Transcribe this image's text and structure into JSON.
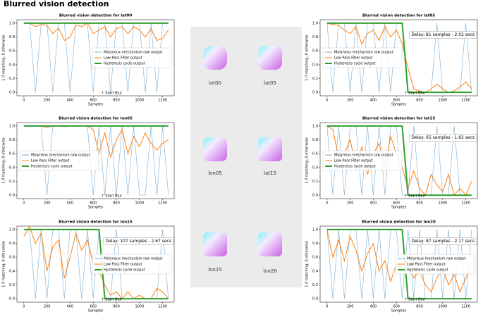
{
  "title": "Blurred vision detection",
  "gallery": {
    "labels": [
      "lat00",
      "lat05",
      "lon05",
      "lat15",
      "lon15",
      "lon20"
    ]
  },
  "chart_data": [
    {
      "type": "line",
      "title": "Blurred vision detection for lat00",
      "x_label": "Samples",
      "y_label": "1 if matching, 0 otherwise",
      "start_label": "↑ Start Blur",
      "legend": "center right",
      "xlim": [
        -60,
        1300
      ],
      "xticks": [
        0,
        200,
        400,
        600,
        800,
        1000,
        1200
      ],
      "ylim": [
        -0.05,
        1.05
      ],
      "yticks": [
        {
          "value": 0,
          "label": "0.0"
        },
        {
          "value": 0.2,
          "label": "0.2"
        },
        {
          "value": 0.4,
          "label": "0.4"
        },
        {
          "value": 0.6,
          "label": "0.6"
        },
        {
          "value": 0.8,
          "label": "0.8"
        },
        {
          "value": 1,
          "label": "1.0"
        }
      ],
      "x": [
        0,
        50,
        100,
        150,
        200,
        250,
        300,
        350,
        400,
        450,
        500,
        550,
        600,
        650,
        700,
        750,
        800,
        850,
        900,
        950,
        1000,
        1050,
        1100,
        1150,
        1200,
        1250
      ],
      "series": [
        {
          "name": "Molyneux mechanism raw output",
          "color": "#1f77b4",
          "values": [
            1,
            1,
            0,
            1,
            1,
            0,
            1,
            1,
            0,
            1,
            1,
            1,
            0,
            1,
            1,
            0,
            1,
            1,
            0,
            1,
            1,
            0,
            1,
            0,
            1,
            1
          ]
        },
        {
          "name": "Low Pass Filter output",
          "color": "#ff7f0e",
          "values": [
            1,
            1,
            0.95,
            0.98,
            0.97,
            0.85,
            0.93,
            0.75,
            0.8,
            0.97,
            0.95,
            1,
            0.85,
            0.9,
            0.95,
            0.8,
            0.92,
            0.95,
            0.85,
            0.95,
            0.9,
            0.8,
            0.92,
            0.75,
            0.78,
            0.9
          ]
        },
        {
          "name": "Hysteresis cycle output",
          "color": "#2ca02c",
          "values": [
            1,
            1,
            1,
            1,
            1,
            1,
            1,
            1,
            1,
            1,
            1,
            1,
            1,
            1,
            1,
            1,
            1,
            1,
            1,
            1,
            1,
            1,
            1,
            1,
            1,
            1
          ]
        }
      ]
    },
    {
      "type": "line",
      "title": "Blurred vision detection for lat05",
      "x_label": "Samples",
      "y_label": "1 if matching, 0 otherwise",
      "start_label": "↑ Start Blur",
      "annotation": "Delay: 81 samples - 2.02 secs",
      "legend": "center left",
      "xlim": [
        -60,
        1300
      ],
      "xticks": [
        0,
        200,
        400,
        600,
        800,
        1000,
        1200
      ],
      "ylim": [
        -0.05,
        1.05
      ],
      "yticks": [
        {
          "value": 0,
          "label": "0.0"
        },
        {
          "value": 0.2,
          "label": "0.2"
        },
        {
          "value": 0.4,
          "label": "0.4"
        },
        {
          "value": 0.6,
          "label": "0.6"
        },
        {
          "value": 0.8,
          "label": "0.8"
        },
        {
          "value": 1,
          "label": "1.0"
        }
      ],
      "x": [
        0,
        50,
        100,
        150,
        200,
        250,
        300,
        350,
        400,
        450,
        500,
        550,
        600,
        650,
        700,
        750,
        800,
        850,
        900,
        950,
        1000,
        1050,
        1100,
        1150,
        1200,
        1250
      ],
      "series": [
        {
          "name": "Molyneux mechanism raw output",
          "color": "#1f77b4",
          "values": [
            1,
            0,
            1,
            1,
            0,
            1,
            0,
            1,
            1,
            0,
            1,
            0,
            1,
            1,
            0,
            0,
            0,
            0,
            0,
            1,
            0,
            0,
            0,
            0,
            1,
            0
          ]
        },
        {
          "name": "Low Pass Filter output",
          "color": "#ff7f0e",
          "values": [
            1,
            0.98,
            0.97,
            0.9,
            0.85,
            0.95,
            0.7,
            0.85,
            0.9,
            0.75,
            0.95,
            0.8,
            0.9,
            0.7,
            0.35,
            0.05,
            0.02,
            0,
            0.05,
            0.12,
            0.05,
            0,
            0.02,
            0.08,
            0.15,
            0.05
          ]
        },
        {
          "name": "Hysteresis cycle output",
          "color": "#2ca02c",
          "values": [
            1,
            1,
            1,
            1,
            1,
            1,
            1,
            1,
            1,
            1,
            1,
            1,
            1,
            1,
            0,
            0,
            0,
            0,
            0,
            0,
            0,
            0,
            0,
            0,
            0,
            0
          ]
        }
      ]
    },
    {
      "type": "line",
      "title": "Blurred vision detection for lon05",
      "x_label": "Samples",
      "y_label": "1 if matching, 0 otherwise",
      "start_label": "↑ Start Blur",
      "legend": "center left",
      "xlim": [
        -60,
        1300
      ],
      "xticks": [
        0,
        200,
        400,
        600,
        800,
        1000,
        1200
      ],
      "ylim": [
        -0.05,
        1.05
      ],
      "yticks": [
        {
          "value": 0,
          "label": "0.0"
        },
        {
          "value": 0.2,
          "label": "0.2"
        },
        {
          "value": 0.4,
          "label": "0.4"
        },
        {
          "value": 0.6,
          "label": "0.6"
        },
        {
          "value": 0.8,
          "label": "0.8"
        },
        {
          "value": 1,
          "label": "1.0"
        }
      ],
      "x": [
        0,
        50,
        100,
        150,
        200,
        250,
        300,
        350,
        400,
        450,
        500,
        550,
        600,
        650,
        700,
        750,
        800,
        850,
        900,
        950,
        1000,
        1050,
        1100,
        1150,
        1200,
        1250
      ],
      "series": [
        {
          "name": "Molyneux mechanism raw output",
          "color": "#1f77b4",
          "values": [
            1,
            1,
            1,
            1,
            0,
            1,
            1,
            1,
            1,
            1,
            1,
            1,
            0,
            1,
            0,
            1,
            0,
            1,
            0,
            1,
            0,
            0,
            1,
            0,
            1,
            0
          ]
        },
        {
          "name": "Low Pass Filter output",
          "color": "#ff7f0e",
          "values": [
            1,
            1,
            1,
            1,
            0.98,
            1,
            1,
            0.99,
            1,
            1,
            1,
            1,
            0.95,
            0.6,
            0.9,
            0.55,
            0.8,
            0.95,
            0.6,
            0.85,
            0.7,
            0.9,
            0.75,
            0.65,
            0.75,
            0.8
          ]
        },
        {
          "name": "Hysteresis cycle output",
          "color": "#2ca02c",
          "values": [
            1,
            1,
            1,
            1,
            1,
            1,
            1,
            1,
            1,
            1,
            1,
            1,
            1,
            1,
            1,
            1,
            1,
            1,
            1,
            1,
            1,
            1,
            1,
            1,
            1,
            1
          ]
        }
      ]
    },
    {
      "type": "line",
      "title": "Blurred vision detection for lat15",
      "x_label": "Samples",
      "y_label": "1 if matching, 0 otherwise",
      "start_label": "↑ Start Blur",
      "annotation": "Delay: 65 samples - 1.62 secs",
      "legend": "center left",
      "xlim": [
        -60,
        1300
      ],
      "xticks": [
        0,
        200,
        400,
        600,
        800,
        1000,
        1200
      ],
      "ylim": [
        -0.05,
        1.05
      ],
      "yticks": [
        {
          "value": 0,
          "label": "0.0"
        },
        {
          "value": 0.2,
          "label": "0.2"
        },
        {
          "value": 0.4,
          "label": "0.4"
        },
        {
          "value": 0.6,
          "label": "0.6"
        },
        {
          "value": 0.8,
          "label": "0.8"
        },
        {
          "value": 1,
          "label": "1.0"
        }
      ],
      "x": [
        0,
        50,
        100,
        150,
        200,
        250,
        300,
        350,
        400,
        450,
        500,
        550,
        600,
        650,
        700,
        750,
        800,
        850,
        900,
        950,
        1000,
        1050,
        1100,
        1150,
        1200,
        1250
      ],
      "series": [
        {
          "name": "Molyneux mechanism raw output",
          "color": "#1f77b4",
          "values": [
            1,
            0,
            1,
            0,
            1,
            1,
            0,
            1,
            0,
            1,
            0,
            1,
            1,
            0,
            0,
            1,
            0,
            0,
            0,
            1,
            0,
            0,
            1,
            0,
            0,
            0
          ]
        },
        {
          "name": "Low Pass Filter output",
          "color": "#ff7f0e",
          "values": [
            1,
            0.95,
            0.55,
            0.6,
            0.8,
            0.4,
            0.7,
            0.3,
            0.6,
            0.75,
            0.4,
            0.85,
            0.6,
            0.4,
            0.1,
            0.35,
            0.1,
            0,
            0.3,
            0.15,
            0.05,
            0.3,
            0,
            0.1,
            0,
            0.2
          ]
        },
        {
          "name": "Hysteresis cycle output",
          "color": "#2ca02c",
          "values": [
            1,
            1,
            1,
            1,
            1,
            1,
            1,
            1,
            1,
            1,
            1,
            1,
            1,
            1,
            0,
            0,
            0,
            0,
            0,
            0,
            0,
            0,
            0,
            0,
            0,
            0
          ]
        }
      ]
    },
    {
      "type": "line",
      "title": "Blurred vision detection for lon15",
      "x_label": "Samples",
      "y_label": "1 if matching, 0 otherwise",
      "start_label": "↑ Start Blur",
      "annotation": "Delay: 107 samples - 2.67 secs",
      "legend": "center right",
      "xlim": [
        -60,
        1300
      ],
      "xticks": [
        0,
        200,
        400,
        600,
        800,
        1000,
        1200
      ],
      "ylim": [
        -0.05,
        1.05
      ],
      "yticks": [
        {
          "value": 0,
          "label": "0.0"
        },
        {
          "value": 0.2,
          "label": "0.2"
        },
        {
          "value": 0.4,
          "label": "0.4"
        },
        {
          "value": 0.6,
          "label": "0.6"
        },
        {
          "value": 0.8,
          "label": "0.8"
        },
        {
          "value": 1,
          "label": "1.0"
        }
      ],
      "x": [
        0,
        50,
        100,
        150,
        200,
        250,
        300,
        350,
        400,
        450,
        500,
        550,
        600,
        650,
        700,
        750,
        800,
        850,
        900,
        950,
        1000,
        1050,
        1100,
        1150,
        1200,
        1250
      ],
      "series": [
        {
          "name": "Molyneux mechanism raw output",
          "color": "#1f77b4",
          "values": [
            1,
            1,
            0,
            1,
            0,
            1,
            1,
            0,
            1,
            1,
            0,
            1,
            0,
            1,
            0,
            0,
            1,
            0,
            0,
            0,
            0,
            0,
            0,
            0,
            1,
            0
          ]
        },
        {
          "name": "Low Pass Filter output",
          "color": "#ff7f0e",
          "values": [
            0.9,
            1.04,
            0.8,
            0.95,
            0.4,
            0.75,
            0.85,
            0.3,
            0.6,
            0.95,
            0.7,
            0.85,
            0.5,
            0.4,
            0.2,
            0.05,
            0.1,
            0,
            0.1,
            0,
            0.05,
            0,
            0,
            0.15,
            0.1,
            0
          ]
        },
        {
          "name": "Hysteresis cycle output",
          "color": "#2ca02c",
          "values": [
            1,
            1,
            1,
            1,
            1,
            1,
            1,
            1,
            1,
            1,
            1,
            1,
            1,
            1,
            0,
            0,
            0,
            0,
            0,
            0,
            0,
            0,
            0,
            0,
            0,
            0
          ]
        }
      ]
    },
    {
      "type": "line",
      "title": "Blurred vision detection for lon20",
      "x_label": "Samples",
      "y_label": "1 if matching, 0 otherwise",
      "start_label": "↑ Start Blur",
      "annotation": "Delay: 87 samples - 2.17 secs",
      "legend": "center right",
      "xlim": [
        -60,
        1300
      ],
      "xticks": [
        0,
        200,
        400,
        600,
        800,
        1000,
        1200
      ],
      "ylim": [
        -0.05,
        1.05
      ],
      "yticks": [
        {
          "value": 0,
          "label": "0.0"
        },
        {
          "value": 0.2,
          "label": "0.2"
        },
        {
          "value": 0.4,
          "label": "0.4"
        },
        {
          "value": 0.6,
          "label": "0.6"
        },
        {
          "value": 0.8,
          "label": "0.8"
        },
        {
          "value": 1,
          "label": "1.0"
        }
      ],
      "x": [
        0,
        50,
        100,
        150,
        200,
        250,
        300,
        350,
        400,
        450,
        500,
        550,
        600,
        650,
        700,
        750,
        800,
        850,
        900,
        950,
        1000,
        1050,
        1100,
        1150,
        1200,
        1250
      ],
      "series": [
        {
          "name": "Molyneux mechanism raw output",
          "color": "#1f77b4",
          "values": [
            1,
            0,
            1,
            0,
            1,
            1,
            0,
            1,
            0,
            1,
            0,
            1,
            1,
            0,
            1,
            0,
            1,
            0,
            0,
            1,
            0,
            1,
            0,
            1,
            0,
            1
          ]
        },
        {
          "name": "Low Pass Filter output",
          "color": "#ff7f0e",
          "values": [
            1,
            0.6,
            0.85,
            0.55,
            0.9,
            0.7,
            0.4,
            0.65,
            0.8,
            0.4,
            0.55,
            0.25,
            0.5,
            0.45,
            0.55,
            0.3,
            0.4,
            0.2,
            0.1,
            0.3,
            0.45,
            0.2,
            0.35,
            0.1,
            0.3,
            0.45
          ]
        },
        {
          "name": "Hysteresis cycle output",
          "color": "#2ca02c",
          "values": [
            1,
            1,
            1,
            1,
            1,
            1,
            1,
            1,
            1,
            1,
            1,
            1,
            1,
            1,
            0,
            0,
            0,
            0,
            0,
            0,
            0,
            0,
            0,
            0,
            0,
            0
          ]
        }
      ]
    }
  ]
}
